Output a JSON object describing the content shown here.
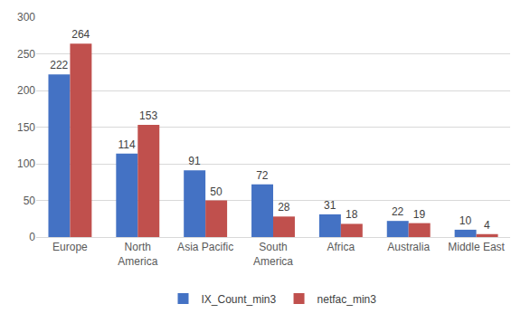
{
  "chart_data": {
    "type": "bar",
    "categories": [
      "Europe",
      "North America",
      "Asia Pacific",
      "South America",
      "Africa",
      "Australia",
      "Middle East"
    ],
    "series": [
      {
        "name": "IX_Count_min3",
        "color": "#4472c4",
        "values": [
          222,
          114,
          91,
          72,
          31,
          22,
          10
        ]
      },
      {
        "name": "netfac_min3",
        "color": "#c0504d",
        "values": [
          264,
          153,
          50,
          28,
          18,
          19,
          4
        ]
      }
    ],
    "ylim": [
      0,
      300
    ],
    "yticks": [
      0,
      50,
      100,
      150,
      200,
      250,
      300
    ],
    "grid": true,
    "legend": "bottom",
    "data_labels": true
  }
}
